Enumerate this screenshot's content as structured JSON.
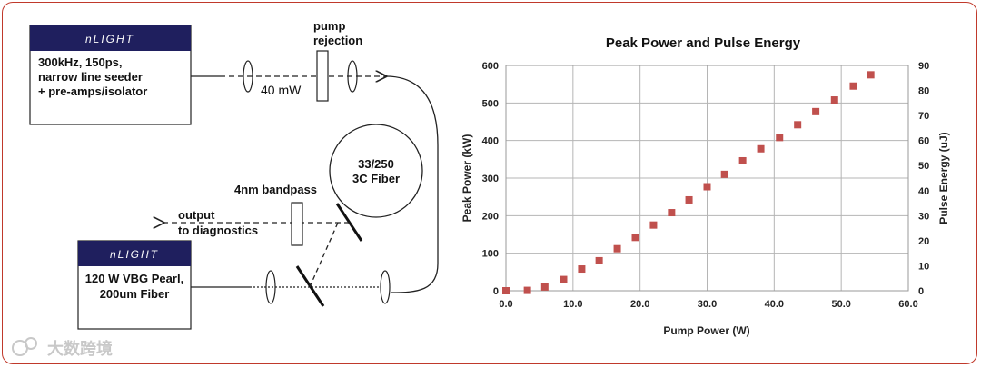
{
  "diagram": {
    "seeder_box": {
      "brand": "nLIGHT",
      "lines": [
        "300kHz, 150ps,",
        "narrow line seeder",
        "+ pre-amps/isolator"
      ]
    },
    "pump_box": {
      "brand": "nLIGHT",
      "lines": [
        "120 W VBG Pearl,",
        "200um Fiber"
      ]
    },
    "pump_rejection_label": [
      "pump",
      "rejection"
    ],
    "power_label": "40 mW",
    "fiber_label": [
      "33/250",
      "3C Fiber"
    ],
    "bandpass_label": "4nm bandpass",
    "output_label": [
      "output",
      "to diagnostics"
    ]
  },
  "watermark": "大数跨境",
  "chart_data": {
    "type": "scatter",
    "title": "Peak Power and Pulse Energy",
    "xlabel": "Pump Power (W)",
    "ylabel": "Peak Power (kW)",
    "y2label": "Pulse Energy (uJ)",
    "xlim": [
      0,
      60
    ],
    "ylim": [
      0,
      600
    ],
    "y2lim": [
      0,
      90
    ],
    "xticks": [
      "0.0",
      "10.0",
      "20.0",
      "30.0",
      "40.0",
      "50.0",
      "60.0"
    ],
    "yticks": [
      "0",
      "100",
      "200",
      "300",
      "400",
      "500",
      "600"
    ],
    "y2ticks": [
      "0",
      "10",
      "20",
      "30",
      "40",
      "50",
      "60",
      "70",
      "80",
      "90"
    ],
    "grid": true,
    "marker_color": "#c0504d",
    "series": [
      {
        "x": [
          0.0,
          3.2,
          5.8,
          8.6,
          11.3,
          13.9,
          16.6,
          19.3,
          22.0,
          24.7,
          27.3,
          30.0,
          32.6,
          35.3,
          38.0,
          40.8,
          43.5,
          46.2,
          49.0,
          51.8,
          54.4
        ],
        "y": [
          0,
          1,
          10,
          30,
          58,
          80,
          112,
          142,
          175,
          208,
          242,
          277,
          310,
          346,
          378,
          408,
          442,
          477,
          508,
          545,
          575
        ]
      }
    ]
  }
}
